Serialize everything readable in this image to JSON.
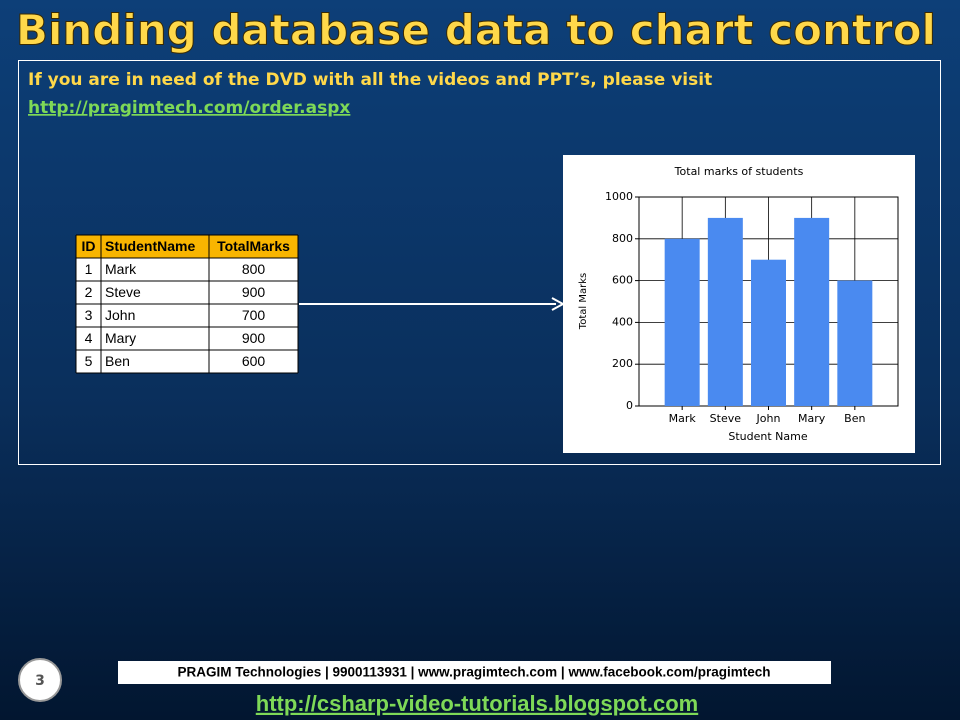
{
  "title": "Binding database data to chart control",
  "notice": {
    "text": "If you are in need of the DVD with all the videos and PPT’s, please visit",
    "link": "http://pragimtech.com/order.aspx"
  },
  "table": {
    "headers": [
      "ID",
      "StudentName",
      "TotalMarks"
    ],
    "rows": [
      [
        1,
        "Mark",
        800
      ],
      [
        2,
        "Steve",
        900
      ],
      [
        3,
        "John",
        700
      ],
      [
        4,
        "Mary",
        900
      ],
      [
        5,
        "Ben",
        600
      ]
    ]
  },
  "chart_data": {
    "type": "bar",
    "title": "Total marks of students",
    "x_label": "Student Name",
    "y_label": "Total Marks",
    "categories": [
      "Mark",
      "Steve",
      "John",
      "Mary",
      "Ben"
    ],
    "values": [
      800,
      900,
      700,
      900,
      600
    ],
    "color": "#4a8af0",
    "ylim": [
      0,
      1000
    ],
    "yticks": [
      0,
      200,
      400,
      600,
      800,
      1000
    ],
    "grid": true
  },
  "slide_number": 3,
  "footer": {
    "company": "PRAGIM Technologies | 9900113931 | www.pragimtech.com | www.facebook.com/pragimtech",
    "link": "http://csharp-video-tutorials.blogspot.com"
  }
}
